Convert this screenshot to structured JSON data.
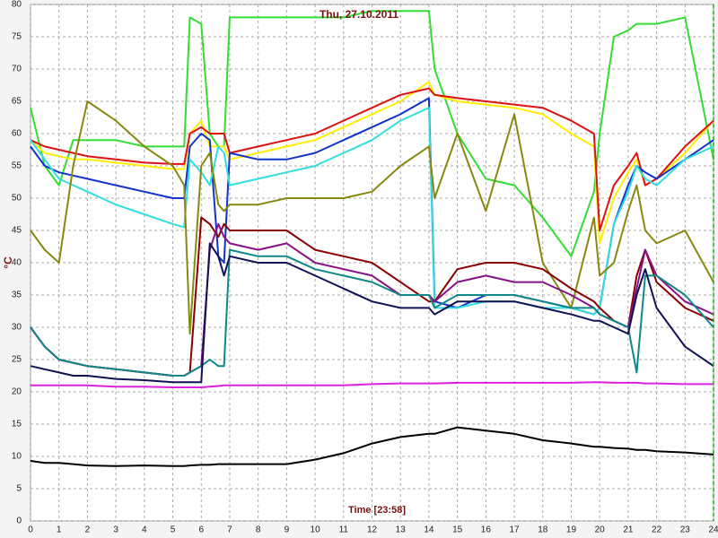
{
  "chart_data": {
    "type": "line",
    "title": "Thu, 27.10.2011",
    "x_label": "Time [23:58]",
    "y_label": "°C",
    "xlim": [
      0,
      24
    ],
    "xticks": [
      0,
      1,
      2,
      3,
      4,
      5,
      6,
      7,
      8,
      9,
      10,
      11,
      12,
      13,
      14,
      15,
      16,
      17,
      18,
      19,
      20,
      21,
      22,
      23,
      24
    ],
    "ylim": [
      0,
      80
    ],
    "yticks": [
      0,
      5,
      10,
      15,
      20,
      25,
      30,
      35,
      40,
      45,
      50,
      55,
      60,
      65,
      70,
      75,
      80
    ],
    "grid": true,
    "x": [
      0,
      0.5,
      1,
      1.5,
      2,
      3,
      4,
      5,
      5.4,
      5.6,
      6,
      6.3,
      6.6,
      6.8,
      7,
      8,
      9,
      10,
      11,
      12,
      13,
      14,
      14.2,
      15,
      16,
      17,
      18,
      19,
      19.8,
      20,
      20.5,
      21,
      21.3,
      21.6,
      22,
      23,
      24
    ],
    "series": [
      {
        "color": "#33dd33",
        "values": [
          64,
          55,
          52,
          59,
          59,
          59,
          58,
          58,
          58,
          78,
          77,
          60,
          58,
          58,
          78,
          78,
          78,
          78,
          78,
          79,
          79,
          79,
          70,
          60,
          53,
          52,
          47,
          41,
          51,
          60,
          75,
          76,
          77,
          77,
          77,
          78,
          56
        ]
      },
      {
        "color": "#ffee00",
        "values": [
          59,
          57,
          56.5,
          56,
          56,
          55.5,
          55,
          54.5,
          54.5,
          60,
          62,
          58,
          58,
          58,
          56,
          57,
          58,
          59,
          61,
          63,
          65,
          68,
          66,
          65,
          64.5,
          64,
          63,
          60,
          58,
          43,
          50,
          54,
          56,
          52,
          53,
          57,
          62
        ]
      },
      {
        "color": "#dd1111",
        "values": [
          59,
          58,
          57.5,
          57,
          56.5,
          56,
          55.5,
          55.3,
          55.3,
          60,
          61,
          60,
          60,
          60,
          57,
          58,
          59,
          60,
          62,
          64,
          66,
          67,
          66,
          65.5,
          65,
          64.5,
          64,
          62,
          60,
          45,
          52,
          55,
          57,
          52,
          53,
          58,
          62
        ]
      },
      {
        "color": "#1133cc",
        "values": [
          58,
          55,
          54,
          53.5,
          53,
          52,
          51,
          50,
          50,
          58,
          60,
          59,
          41,
          40,
          57,
          56,
          56,
          57,
          59,
          61,
          63,
          65.5,
          34,
          33,
          35,
          35,
          34,
          33,
          32,
          33,
          46,
          52,
          55,
          54,
          53,
          56,
          59
        ]
      },
      {
        "color": "#33dddd",
        "values": [
          59,
          56,
          53,
          52,
          51,
          49,
          47.5,
          46,
          45.5,
          56,
          54,
          52,
          58,
          57,
          52,
          53,
          54,
          55,
          57,
          59,
          62,
          64,
          33,
          33,
          34,
          34,
          33,
          33,
          32,
          33,
          46,
          51,
          55,
          53,
          52,
          56,
          58
        ]
      },
      {
        "color": "#888811",
        "values": [
          45,
          42,
          40,
          55,
          65,
          62,
          58,
          55,
          52,
          29,
          55,
          57,
          49,
          48,
          49,
          49,
          50,
          50,
          50,
          51,
          55,
          58,
          50,
          60,
          48,
          63,
          40,
          33,
          47,
          38,
          40,
          48,
          52,
          45,
          43,
          45,
          37
        ]
      },
      {
        "color": "#880000",
        "values": [
          30,
          27,
          25,
          24.5,
          24,
          23.5,
          23,
          22.5,
          22.5,
          23,
          47,
          46,
          44,
          46,
          45,
          45,
          45,
          42,
          41,
          40,
          37,
          34,
          34,
          39,
          40,
          40,
          39,
          36,
          34,
          33,
          31,
          30,
          38,
          42,
          37,
          33,
          31
        ]
      },
      {
        "color": "#881188",
        "values": [
          30,
          27,
          25,
          24.5,
          24,
          23.5,
          23,
          22.5,
          22.5,
          23,
          24,
          42,
          46,
          44,
          43,
          42,
          43,
          40,
          39,
          38,
          35,
          35,
          34,
          37,
          38,
          37,
          37,
          35,
          33,
          32,
          31,
          30,
          36,
          42,
          38,
          34,
          32
        ]
      },
      {
        "color": "#118888",
        "values": [
          30,
          27,
          25,
          24.5,
          24,
          23.5,
          23,
          22.5,
          22.5,
          23,
          24,
          25,
          24,
          24,
          42,
          41,
          41,
          39,
          38,
          37,
          35,
          35,
          33,
          35,
          35,
          35,
          34,
          33,
          33,
          32,
          31,
          30,
          23,
          38,
          38,
          35,
          30
        ]
      },
      {
        "color": "#111155",
        "values": [
          24,
          23.5,
          23,
          22.5,
          22.5,
          22,
          21.8,
          21.5,
          21.5,
          21.5,
          21.5,
          43,
          41,
          38,
          41,
          40,
          40,
          38,
          36,
          34,
          33,
          33,
          32,
          34,
          34,
          34,
          33,
          32,
          31,
          31,
          30,
          29,
          35,
          39,
          33,
          27,
          24
        ]
      },
      {
        "color": "#dd22dd",
        "values": [
          21,
          21,
          21,
          21,
          21,
          20.8,
          20.8,
          20.7,
          20.7,
          20.7,
          20.7,
          20.8,
          20.9,
          21,
          21,
          21,
          21,
          21,
          21,
          21.2,
          21.3,
          21.3,
          21.3,
          21.4,
          21.4,
          21.4,
          21.4,
          21.4,
          21.5,
          21.5,
          21.4,
          21.4,
          21.4,
          21.3,
          21.3,
          21.2,
          21.2
        ]
      },
      {
        "color": "#000000",
        "values": [
          9.3,
          9,
          9,
          8.8,
          8.6,
          8.5,
          8.6,
          8.5,
          8.5,
          8.6,
          8.7,
          8.7,
          8.8,
          8.8,
          8.8,
          8.8,
          8.8,
          9.5,
          10.5,
          12,
          13,
          13.5,
          13.5,
          14.5,
          14,
          13.5,
          12.5,
          12,
          11.5,
          11.5,
          11.3,
          11.2,
          11,
          11,
          10.8,
          10.6,
          10.3
        ]
      }
    ]
  }
}
